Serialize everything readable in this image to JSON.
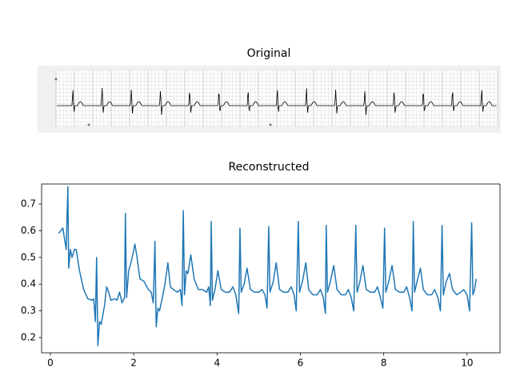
{
  "original_panel": {
    "title": "Original"
  },
  "chart_data": {
    "type": "line",
    "title": "Reconstructed",
    "x": [
      0.2,
      0.25,
      0.3,
      0.38,
      0.42,
      0.44,
      0.48,
      0.52,
      0.58,
      0.62,
      0.7,
      0.8,
      0.9,
      1.0,
      1.04,
      1.08,
      1.11,
      1.14,
      1.18,
      1.22,
      1.3,
      1.35,
      1.4,
      1.45,
      1.55,
      1.6,
      1.66,
      1.72,
      1.78,
      1.8,
      1.83,
      1.88,
      1.95,
      2.03,
      2.08,
      2.15,
      2.25,
      2.35,
      2.42,
      2.47,
      2.51,
      2.54,
      2.58,
      2.62,
      2.7,
      2.75,
      2.82,
      2.88,
      2.95,
      3.05,
      3.12,
      3.16,
      3.19,
      3.22,
      3.26,
      3.3,
      3.37,
      3.45,
      3.55,
      3.65,
      3.75,
      3.8,
      3.84,
      3.86,
      3.89,
      3.95,
      4.02,
      4.1,
      4.2,
      4.3,
      4.38,
      4.45,
      4.52,
      4.55,
      4.58,
      4.65,
      4.72,
      4.8,
      4.9,
      5.0,
      5.08,
      5.15,
      5.2,
      5.24,
      5.27,
      5.35,
      5.42,
      5.5,
      5.6,
      5.7,
      5.78,
      5.85,
      5.9,
      5.95,
      5.98,
      6.05,
      6.13,
      6.2,
      6.3,
      6.4,
      6.48,
      6.55,
      6.6,
      6.62,
      6.65,
      6.72,
      6.8,
      6.88,
      6.98,
      7.08,
      7.15,
      7.22,
      7.28,
      7.33,
      7.36,
      7.43,
      7.5,
      7.58,
      7.68,
      7.78,
      7.85,
      7.92,
      7.98,
      8.02,
      8.05,
      8.12,
      8.2,
      8.28,
      8.38,
      8.48,
      8.55,
      8.62,
      8.68,
      8.71,
      8.74,
      8.8,
      8.88,
      8.95,
      9.05,
      9.15,
      9.22,
      9.3,
      9.36,
      9.4,
      9.43,
      9.5,
      9.58,
      9.65,
      9.75,
      9.85,
      9.92,
      10.0,
      10.06,
      10.11,
      10.14,
      10.18,
      10.22
    ],
    "series": [
      {
        "color": "#1f77b4",
        "values": [
          0.59,
          0.6,
          0.61,
          0.53,
          0.765,
          0.46,
          0.53,
          0.5,
          0.53,
          0.53,
          0.45,
          0.38,
          0.345,
          0.34,
          0.345,
          0.26,
          0.5,
          0.17,
          0.26,
          0.25,
          0.32,
          0.39,
          0.37,
          0.34,
          0.345,
          0.34,
          0.37,
          0.33,
          0.35,
          0.665,
          0.35,
          0.45,
          0.49,
          0.55,
          0.5,
          0.42,
          0.41,
          0.38,
          0.37,
          0.33,
          0.56,
          0.24,
          0.31,
          0.3,
          0.36,
          0.4,
          0.48,
          0.39,
          0.38,
          0.37,
          0.38,
          0.32,
          0.675,
          0.36,
          0.45,
          0.44,
          0.51,
          0.42,
          0.38,
          0.38,
          0.37,
          0.39,
          0.32,
          0.635,
          0.34,
          0.38,
          0.45,
          0.38,
          0.37,
          0.37,
          0.39,
          0.36,
          0.29,
          0.61,
          0.37,
          0.4,
          0.46,
          0.38,
          0.37,
          0.37,
          0.38,
          0.36,
          0.31,
          0.615,
          0.37,
          0.41,
          0.48,
          0.38,
          0.37,
          0.37,
          0.39,
          0.36,
          0.3,
          0.635,
          0.37,
          0.41,
          0.48,
          0.38,
          0.36,
          0.36,
          0.38,
          0.35,
          0.29,
          0.62,
          0.37,
          0.41,
          0.47,
          0.38,
          0.36,
          0.36,
          0.38,
          0.35,
          0.3,
          0.62,
          0.37,
          0.41,
          0.47,
          0.38,
          0.37,
          0.37,
          0.39,
          0.35,
          0.31,
          0.61,
          0.37,
          0.41,
          0.47,
          0.38,
          0.37,
          0.37,
          0.39,
          0.35,
          0.3,
          0.635,
          0.37,
          0.41,
          0.46,
          0.38,
          0.36,
          0.36,
          0.38,
          0.35,
          0.3,
          0.62,
          0.36,
          0.41,
          0.44,
          0.38,
          0.36,
          0.37,
          0.38,
          0.36,
          0.3,
          0.63,
          0.36,
          0.38,
          0.42
        ]
      }
    ],
    "xlim": [
      -0.21,
      10.79
    ],
    "ylim": [
      0.143,
      0.775
    ],
    "xticks": [
      0,
      2,
      4,
      6,
      8,
      10
    ],
    "yticks": [
      0.2,
      0.3,
      0.4,
      0.5,
      0.6,
      0.7
    ]
  }
}
